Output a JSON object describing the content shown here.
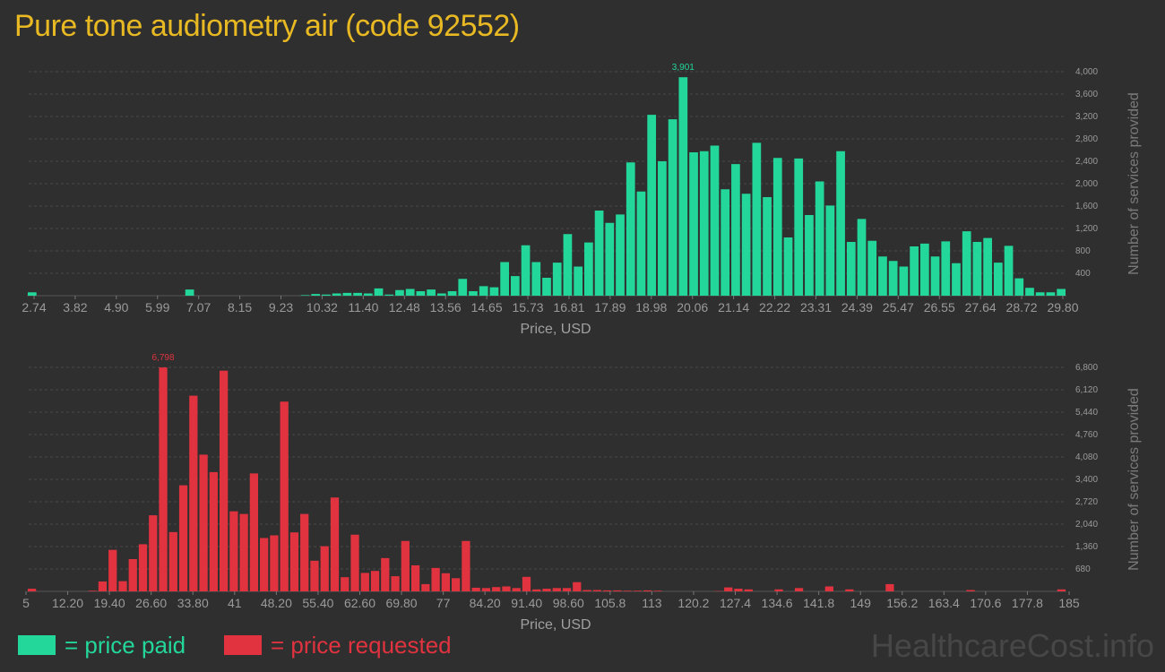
{
  "title": "Pure tone audiometry air (code 92552)",
  "legend": {
    "paid": {
      "label": "= price paid",
      "color": "#23d79a"
    },
    "requested": {
      "label": "= price requested",
      "color": "#e0333f"
    }
  },
  "watermark": "HealthcareCost.info",
  "chart_data": [
    {
      "type": "bar",
      "name": "price paid",
      "color": "#23d79a",
      "xlabel": "Price, USD",
      "ylabel": "Number of services provided",
      "x_ticks": [
        "2.74",
        "3.82",
        "4.90",
        "5.99",
        "7.07",
        "8.15",
        "9.23",
        "10.32",
        "11.40",
        "12.48",
        "13.56",
        "14.65",
        "15.73",
        "16.81",
        "17.89",
        "18.98",
        "20.06",
        "21.14",
        "22.22",
        "23.31",
        "24.39",
        "25.47",
        "26.55",
        "27.64",
        "28.72",
        "29.80"
      ],
      "y_ticks": [
        "400",
        "800",
        "1,200",
        "1,600",
        "2,000",
        "2,400",
        "2,800",
        "3,200",
        "3,600",
        "4,000"
      ],
      "ylim": [
        0,
        4000
      ],
      "peak_label": "3,901",
      "values": [
        60,
        0,
        0,
        0,
        0,
        0,
        0,
        0,
        0,
        0,
        0,
        0,
        0,
        0,
        0,
        110,
        0,
        0,
        0,
        0,
        0,
        0,
        0,
        0,
        0,
        0,
        10,
        30,
        20,
        40,
        50,
        50,
        40,
        130,
        20,
        100,
        120,
        80,
        110,
        40,
        80,
        300,
        80,
        170,
        150,
        600,
        350,
        900,
        600,
        320,
        590,
        1100,
        520,
        950,
        1520,
        1300,
        1450,
        2380,
        1860,
        3230,
        2400,
        3150,
        3901,
        2560,
        2580,
        2680,
        1900,
        2350,
        1820,
        2730,
        1760,
        2460,
        1040,
        2450,
        1440,
        2040,
        1610,
        2580,
        960,
        1370,
        980,
        700,
        620,
        520,
        880,
        930,
        700,
        970,
        580,
        1150,
        960,
        1030,
        590,
        890,
        310,
        140,
        60,
        60,
        120
      ]
    },
    {
      "type": "bar",
      "name": "price requested",
      "color": "#e0333f",
      "xlabel": "Price, USD",
      "ylabel": "Number of services provided",
      "x_ticks": [
        "5",
        "12.20",
        "19.40",
        "26.60",
        "33.80",
        "41",
        "48.20",
        "55.40",
        "62.60",
        "69.80",
        "77",
        "84.20",
        "91.40",
        "98.60",
        "105.8",
        "113",
        "120.2",
        "127.4",
        "134.6",
        "141.8",
        "149",
        "156.2",
        "163.4",
        "170.6",
        "177.8",
        "185"
      ],
      "y_ticks": [
        "680",
        "1,360",
        "2,040",
        "2,720",
        "3,400",
        "4,080",
        "4,760",
        "5,440",
        "6,120",
        "6,800"
      ],
      "ylim": [
        0,
        6800
      ],
      "peak_label": "6,798",
      "values": [
        80,
        0,
        0,
        0,
        0,
        0,
        20,
        300,
        1260,
        310,
        980,
        1430,
        2310,
        6798,
        1800,
        3220,
        5940,
        4150,
        3620,
        6700,
        2430,
        2350,
        3580,
        1620,
        1700,
        5760,
        1790,
        2350,
        930,
        1370,
        2850,
        430,
        1720,
        560,
        620,
        1010,
        460,
        1530,
        790,
        220,
        710,
        550,
        400,
        1530,
        110,
        100,
        130,
        150,
        100,
        440,
        60,
        80,
        100,
        100,
        280,
        40,
        40,
        30,
        30,
        20,
        20,
        30,
        20,
        0,
        0,
        0,
        0,
        0,
        10,
        120,
        80,
        60,
        0,
        0,
        60,
        0,
        100,
        0,
        0,
        150,
        0,
        60,
        0,
        0,
        0,
        220,
        0,
        0,
        0,
        0,
        0,
        0,
        0,
        40,
        0,
        0,
        0,
        0,
        0,
        0,
        0,
        0,
        60
      ]
    }
  ]
}
